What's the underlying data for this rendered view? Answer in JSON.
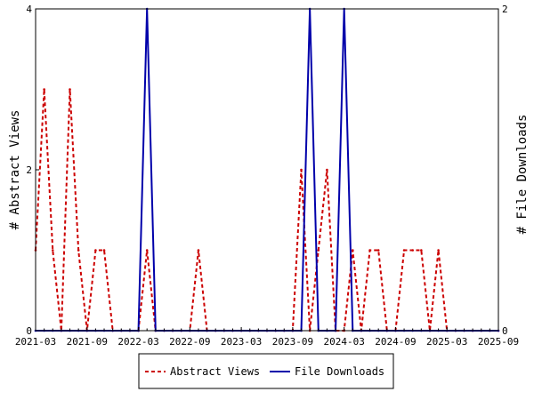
{
  "chart_data": {
    "type": "line",
    "x_tick_labels": [
      "2021-03",
      "2021-09",
      "2022-03",
      "2022-09",
      "2023-03",
      "2023-09",
      "2024-03",
      "2024-09",
      "2025-03",
      "2025-09"
    ],
    "ylabel_left": "# Abstract Views",
    "ylabel_right": "# File Downloads",
    "ylim_left": [
      0,
      4
    ],
    "ylim_right": [
      0,
      2
    ],
    "yticks_left": [
      "0",
      "2",
      "4"
    ],
    "yticks_right": [
      "0",
      "2"
    ],
    "grid": false,
    "legend_position": "bottom",
    "months": [
      "2021-03",
      "2021-04",
      "2021-05",
      "2021-06",
      "2021-07",
      "2021-08",
      "2021-09",
      "2021-10",
      "2021-11",
      "2021-12",
      "2022-01",
      "2022-02",
      "2022-03",
      "2022-04",
      "2022-05",
      "2022-06",
      "2022-07",
      "2022-08",
      "2022-09",
      "2022-10",
      "2022-11",
      "2022-12",
      "2023-01",
      "2023-02",
      "2023-03",
      "2023-04",
      "2023-05",
      "2023-06",
      "2023-07",
      "2023-08",
      "2023-09",
      "2023-10",
      "2023-11",
      "2023-12",
      "2024-01",
      "2024-02",
      "2024-03",
      "2024-04",
      "2024-05",
      "2024-06",
      "2024-07",
      "2024-08",
      "2024-09",
      "2024-10",
      "2024-11",
      "2024-12",
      "2025-01",
      "2025-02",
      "2025-03",
      "2025-04",
      "2025-05",
      "2025-06",
      "2025-07",
      "2025-08",
      "2025-09"
    ],
    "series": [
      {
        "name": "Abstract Views",
        "axis": "left",
        "color": "#cc0000",
        "dash": "dashed",
        "values": [
          1,
          3,
          1,
          0,
          3,
          1,
          0,
          1,
          1,
          0,
          0,
          0,
          0,
          1,
          0,
          0,
          0,
          0,
          0,
          1,
          0,
          0,
          0,
          0,
          0,
          0,
          0,
          0,
          0,
          0,
          0,
          2,
          0,
          1,
          2,
          0,
          0,
          1,
          0,
          1,
          1,
          0,
          0,
          1,
          1,
          1,
          0,
          1,
          0,
          0,
          0,
          0,
          0,
          0,
          0
        ]
      },
      {
        "name": "File Downloads",
        "axis": "right",
        "color": "#0000aa",
        "dash": "solid",
        "values": [
          0,
          0,
          0,
          0,
          0,
          0,
          0,
          0,
          0,
          0,
          0,
          0,
          0,
          2,
          0,
          0,
          0,
          0,
          0,
          0,
          0,
          0,
          0,
          0,
          0,
          0,
          0,
          0,
          0,
          0,
          0,
          0,
          2,
          0,
          0,
          0,
          2,
          0,
          0,
          0,
          0,
          0,
          0,
          0,
          0,
          0,
          0,
          0,
          0,
          0,
          0,
          0,
          0,
          0,
          0
        ]
      }
    ]
  }
}
